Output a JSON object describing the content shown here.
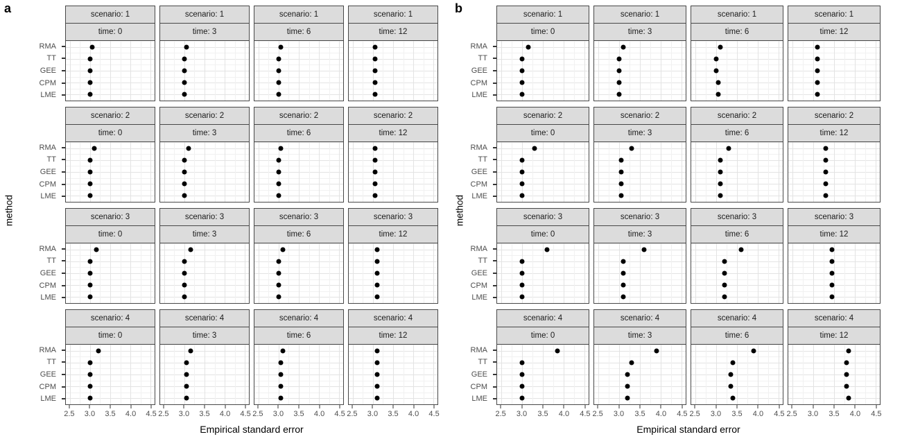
{
  "figure": {
    "panel_a_label": "a",
    "panel_b_label": "b",
    "x_axis_title": "Empirical standard error",
    "y_axis_title": "method"
  },
  "colors": {
    "strip_background": "#dcdcdc",
    "panel_border": "#474747",
    "grid_major": "#e3e3e3",
    "grid_minor": "#f1f1f1",
    "dot": "#000000",
    "axis_text": "#4d4d4d",
    "title_text": "#000000"
  },
  "chart_data": [
    {
      "panel": "a",
      "type": "scatter",
      "title": "",
      "xlabel": "Empirical standard error",
      "ylabel": "method",
      "grid": true,
      "facet_row_variable": "scenario",
      "facet_col_variable": "time",
      "scenarios": [
        1,
        2,
        3,
        4
      ],
      "times": [
        0,
        3,
        6,
        12
      ],
      "method_order_top_to_bottom": [
        "RMA",
        "TT",
        "GEE",
        "CPM",
        "LME"
      ],
      "xticks": [
        2.5,
        3.0,
        3.5,
        4.0,
        4.5
      ],
      "xlim_render": [
        2.4,
        4.6
      ],
      "values": {
        "scenario: 1": {
          "time: 0": {
            "RMA": 3.05,
            "TT": 3.0,
            "GEE": 3.0,
            "CPM": 3.0,
            "LME": 3.0
          },
          "time: 3": {
            "RMA": 3.05,
            "TT": 3.0,
            "GEE": 3.0,
            "CPM": 3.0,
            "LME": 3.0
          },
          "time: 6": {
            "RMA": 3.05,
            "TT": 3.0,
            "GEE": 3.0,
            "CPM": 3.0,
            "LME": 3.0
          },
          "time: 12": {
            "RMA": 3.05,
            "TT": 3.05,
            "GEE": 3.05,
            "CPM": 3.05,
            "LME": 3.05
          }
        },
        "scenario: 2": {
          "time: 0": {
            "RMA": 3.1,
            "TT": 3.0,
            "GEE": 3.0,
            "CPM": 3.0,
            "LME": 3.0
          },
          "time: 3": {
            "RMA": 3.1,
            "TT": 3.0,
            "GEE": 3.0,
            "CPM": 3.0,
            "LME": 3.0
          },
          "time: 6": {
            "RMA": 3.05,
            "TT": 3.0,
            "GEE": 3.0,
            "CPM": 3.0,
            "LME": 3.0
          },
          "time: 12": {
            "RMA": 3.05,
            "TT": 3.05,
            "GEE": 3.05,
            "CPM": 3.05,
            "LME": 3.05
          }
        },
        "scenario: 3": {
          "time: 0": {
            "RMA": 3.15,
            "TT": 3.0,
            "GEE": 3.0,
            "CPM": 3.0,
            "LME": 3.0
          },
          "time: 3": {
            "RMA": 3.15,
            "TT": 3.0,
            "GEE": 3.0,
            "CPM": 3.0,
            "LME": 3.0
          },
          "time: 6": {
            "RMA": 3.1,
            "TT": 3.0,
            "GEE": 3.0,
            "CPM": 3.0,
            "LME": 3.0
          },
          "time: 12": {
            "RMA": 3.1,
            "TT": 3.1,
            "GEE": 3.1,
            "CPM": 3.1,
            "LME": 3.1
          }
        },
        "scenario: 4": {
          "time: 0": {
            "RMA": 3.2,
            "TT": 3.0,
            "GEE": 3.0,
            "CPM": 3.0,
            "LME": 3.0
          },
          "time: 3": {
            "RMA": 3.15,
            "TT": 3.05,
            "GEE": 3.05,
            "CPM": 3.05,
            "LME": 3.05
          },
          "time: 6": {
            "RMA": 3.1,
            "TT": 3.05,
            "GEE": 3.05,
            "CPM": 3.05,
            "LME": 3.05
          },
          "time: 12": {
            "RMA": 3.1,
            "TT": 3.1,
            "GEE": 3.1,
            "CPM": 3.1,
            "LME": 3.1
          }
        }
      }
    },
    {
      "panel": "b",
      "type": "scatter",
      "title": "",
      "xlabel": "Empirical standard error",
      "ylabel": "method",
      "grid": true,
      "facet_row_variable": "scenario",
      "facet_col_variable": "time",
      "scenarios": [
        1,
        2,
        3,
        4
      ],
      "times": [
        0,
        3,
        6,
        12
      ],
      "method_order_top_to_bottom": [
        "RMA",
        "TT",
        "GEE",
        "CPM",
        "LME"
      ],
      "xticks": [
        2.5,
        3.0,
        3.5,
        4.0,
        4.5
      ],
      "xlim_render": [
        2.4,
        4.6
      ],
      "values": {
        "scenario: 1": {
          "time: 0": {
            "RMA": 3.15,
            "TT": 3.0,
            "GEE": 3.0,
            "CPM": 3.0,
            "LME": 3.0
          },
          "time: 3": {
            "RMA": 3.1,
            "TT": 3.0,
            "GEE": 3.0,
            "CPM": 3.0,
            "LME": 3.0
          },
          "time: 6": {
            "RMA": 3.1,
            "TT": 3.0,
            "GEE": 3.0,
            "CPM": 3.05,
            "LME": 3.05
          },
          "time: 12": {
            "RMA": 3.1,
            "TT": 3.1,
            "GEE": 3.1,
            "CPM": 3.1,
            "LME": 3.1
          }
        },
        "scenario: 2": {
          "time: 0": {
            "RMA": 3.3,
            "TT": 3.0,
            "GEE": 3.0,
            "CPM": 3.0,
            "LME": 3.0
          },
          "time: 3": {
            "RMA": 3.3,
            "TT": 3.05,
            "GEE": 3.05,
            "CPM": 3.05,
            "LME": 3.05
          },
          "time: 6": {
            "RMA": 3.3,
            "TT": 3.1,
            "GEE": 3.1,
            "CPM": 3.1,
            "LME": 3.1
          },
          "time: 12": {
            "RMA": 3.3,
            "TT": 3.3,
            "GEE": 3.3,
            "CPM": 3.3,
            "LME": 3.3
          }
        },
        "scenario: 3": {
          "time: 0": {
            "RMA": 3.6,
            "TT": 3.0,
            "GEE": 3.0,
            "CPM": 3.0,
            "LME": 3.0
          },
          "time: 3": {
            "RMA": 3.6,
            "TT": 3.1,
            "GEE": 3.1,
            "CPM": 3.1,
            "LME": 3.1
          },
          "time: 6": {
            "RMA": 3.6,
            "TT": 3.2,
            "GEE": 3.2,
            "CPM": 3.2,
            "LME": 3.2
          },
          "time: 12": {
            "RMA": 3.45,
            "TT": 3.45,
            "GEE": 3.45,
            "CPM": 3.45,
            "LME": 3.45
          }
        },
        "scenario: 4": {
          "time: 0": {
            "RMA": 3.85,
            "TT": 3.0,
            "GEE": 3.0,
            "CPM": 3.0,
            "LME": 3.0
          },
          "time: 3": {
            "RMA": 3.9,
            "TT": 3.3,
            "GEE": 3.2,
            "CPM": 3.2,
            "LME": 3.2
          },
          "time: 6": {
            "RMA": 3.9,
            "TT": 3.4,
            "GEE": 3.35,
            "CPM": 3.35,
            "LME": 3.4
          },
          "time: 12": {
            "RMA": 3.85,
            "TT": 3.8,
            "GEE": 3.8,
            "CPM": 3.8,
            "LME": 3.85
          }
        }
      }
    }
  ]
}
